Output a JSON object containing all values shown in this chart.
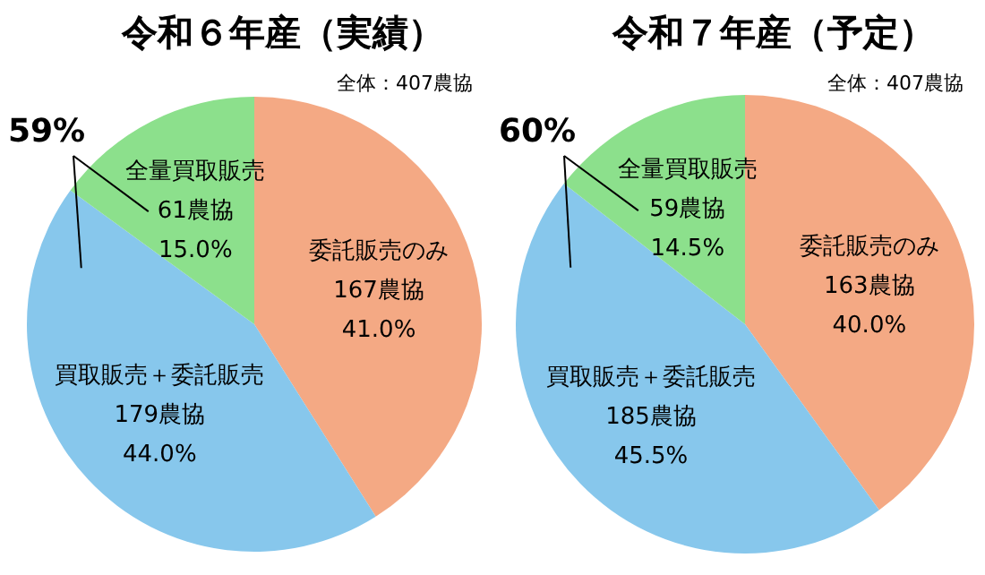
{
  "chart_data": [
    {
      "type": "pie",
      "title": "令和６年産（実績）",
      "subtitle": "全体：407農協",
      "categories": [
        "委託販売のみ",
        "買取販売＋委託販売",
        "全量買取販売"
      ],
      "values": [
        167,
        179,
        61
      ],
      "value_labels": [
        "167農協\n41.0%",
        "179農協\n44.0%",
        "61農協\n15.0%"
      ],
      "colors": [
        "#f4a984",
        "#87c7ec",
        "#8ce08c"
      ],
      "annotations": [
        "59%"
      ]
    },
    {
      "type": "pie",
      "title": "令和７年産（予定）",
      "subtitle": "全体：407農協",
      "categories": [
        "委託販売のみ",
        "買取販売＋委託販売",
        "全量買取販売"
      ],
      "values": [
        163,
        185,
        59
      ],
      "value_labels": [
        "163農協\n40.0%",
        "185農協\n45.5%",
        "59農協\n14.5%"
      ],
      "colors": [
        "#f4a984",
        "#87c7ec",
        "#8ce08c"
      ],
      "annotations": [
        "60%"
      ]
    }
  ]
}
